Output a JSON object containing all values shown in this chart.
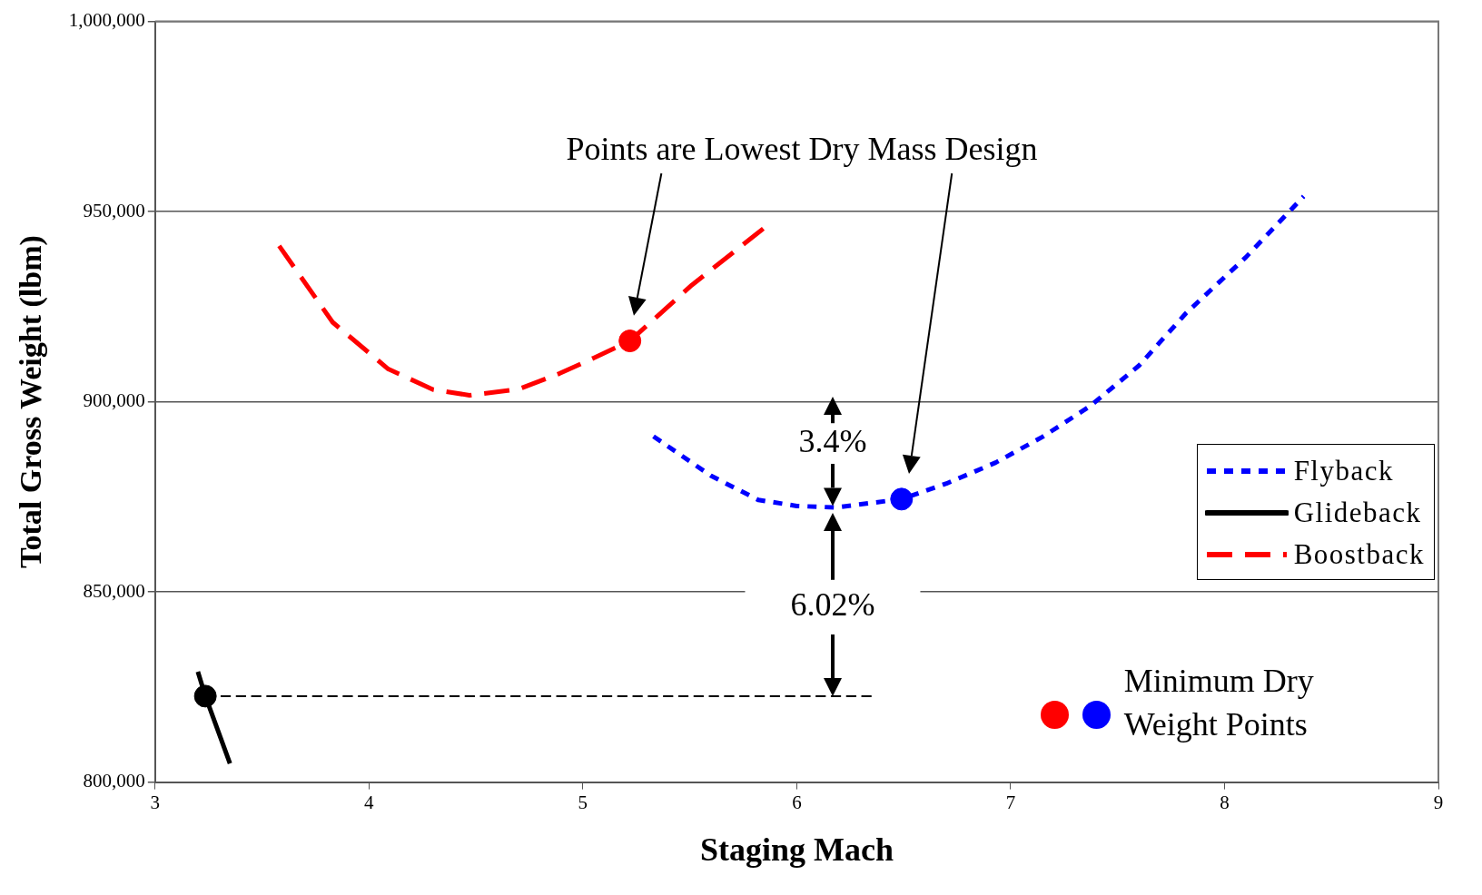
{
  "chart_data": {
    "type": "line",
    "xlabel": "Staging Mach",
    "ylabel": "Total Gross Weight (lbm)",
    "xlim": [
      3,
      9
    ],
    "xticks": [
      3,
      4,
      5,
      6,
      7,
      8,
      9
    ],
    "ylim": [
      800000,
      1000000
    ],
    "yticks": [
      {
        "value": 800000,
        "label": "800,000"
      },
      {
        "value": 850000,
        "label": "850,000"
      },
      {
        "value": 900000,
        "label": "900,000"
      },
      {
        "value": 950000,
        "label": "950,000"
      },
      {
        "value": 1000000,
        "label": "1,000,000"
      }
    ],
    "grid": "y",
    "legend": "right",
    "series": [
      {
        "name": "Flyback",
        "color": "#0000ff",
        "line_style": "dotted",
        "marker": "none",
        "x": [
          5.33,
          5.6,
          5.82,
          6.0,
          6.18,
          6.49,
          6.7,
          6.93,
          7.15,
          7.37,
          7.6,
          7.82,
          8.1,
          8.37
        ],
        "values": [
          890900,
          880500,
          874200,
          872600,
          872200,
          874400,
          878500,
          884000,
          890800,
          898800,
          909500,
          923300,
          938000,
          954000
        ]
      },
      {
        "name": "Glideback",
        "color": "#000000",
        "line_style": "solid",
        "marker": "none",
        "x": [
          3.2,
          3.235,
          3.35
        ],
        "values": [
          829000,
          822600,
          804900
        ]
      },
      {
        "name": "Boostback",
        "color": "#ff0000",
        "line_style": "dashed",
        "marker": "none",
        "x": [
          3.58,
          3.83,
          4.09,
          4.3,
          4.47,
          4.7,
          4.89,
          5.05,
          5.22,
          5.51,
          5.87
        ],
        "values": [
          941000,
          920900,
          908600,
          903200,
          901700,
          903300,
          907400,
          911500,
          916000,
          930700,
          946700
        ]
      },
      {
        "type": "scatter",
        "color": "#ff0000",
        "marker": "circle",
        "x": [
          5.22
        ],
        "values": [
          916000
        ]
      },
      {
        "type": "scatter",
        "color": "#0000ff",
        "marker": "circle",
        "x": [
          6.49
        ],
        "values": [
          874400
        ]
      },
      {
        "type": "scatter",
        "color": "#000000",
        "marker": "circle",
        "x": [
          3.235
        ],
        "values": [
          822600
        ]
      },
      {
        "type": "line",
        "color": "#000000",
        "line_style": "dashed",
        "marker": "none",
        "x": [
          3.235,
          6.36
        ],
        "values": [
          822600,
          822600
        ]
      }
    ],
    "annotations": [
      "Points are Lowest Dry Mass Design",
      "3.4%",
      "6.02%",
      "Minimum Dry Weight Points"
    ]
  }
}
